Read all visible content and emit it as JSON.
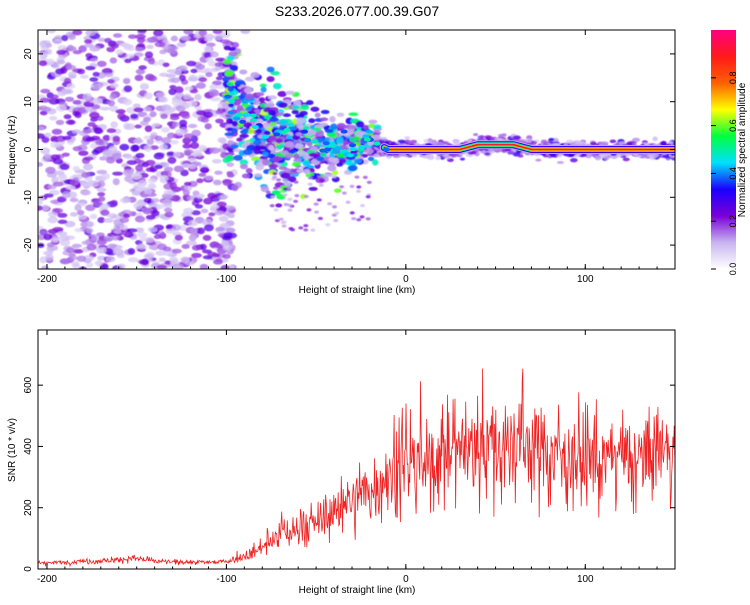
{
  "figure_title": "S233.2026.077.00.39.G07",
  "chart_data": [
    {
      "type": "heatmap",
      "title": "S233.2026.077.00.39.G07",
      "xlabel": "Height of straight line (km)",
      "ylabel": "Frequency (Hz)",
      "xlim": [
        -205,
        150
      ],
      "ylim": [
        -25,
        25
      ],
      "xticks": [
        -200,
        -100,
        0,
        100
      ],
      "yticks": [
        -20,
        -10,
        0,
        10,
        20
      ],
      "xtick_labels": [
        "-200",
        "-100",
        "0",
        "100"
      ],
      "ytick_labels": [
        "-20",
        "-10",
        "0",
        "10",
        "20"
      ],
      "colorbar": {
        "label": "Normalized spectral amplitude",
        "range": [
          0,
          1
        ],
        "ticks": [
          0.0,
          0.2,
          0.4,
          0.6,
          0.8
        ],
        "tick_labels": [
          "0.0",
          "0.2",
          "0.4",
          "0.6",
          "0.8"
        ],
        "colormap": [
          "#ffffff",
          "#c8b4f0",
          "#7a00d8",
          "#1a00ff",
          "#00e0ff",
          "#00ff40",
          "#ffff00",
          "#ff6000",
          "#ff1a1a",
          "#ff0080"
        ]
      },
      "description_series": [
        {
          "name": "dominant frequency ridge",
          "x": [
            -100,
            -90,
            -80,
            -70,
            -60,
            -50,
            -40,
            -30,
            -20,
            -10,
            0,
            10,
            20,
            30,
            40,
            50,
            60,
            70,
            80,
            90,
            100,
            110,
            120,
            130,
            140,
            150
          ],
          "y": [
            10,
            7,
            4,
            2,
            3,
            1,
            0,
            1,
            2,
            0,
            0,
            0,
            0,
            0,
            1,
            1,
            1,
            0,
            0,
            0,
            0,
            0,
            0,
            0,
            0,
            0
          ]
        }
      ]
    },
    {
      "type": "line",
      "title": "",
      "xlabel": "Height of straight line (km)",
      "ylabel": "SNR (10 * v/v)",
      "xlim": [
        -205,
        150
      ],
      "ylim": [
        0,
        780
      ],
      "xticks": [
        -200,
        -100,
        0,
        100
      ],
      "yticks": [
        0,
        200,
        400,
        600
      ],
      "xtick_labels": [
        "-200",
        "-100",
        "0",
        "100"
      ],
      "ytick_labels": [
        "0",
        "200",
        "400",
        "600"
      ],
      "series": [
        {
          "name": "SNR",
          "color": "#ee2222",
          "x": [
            -205,
            -190,
            -175,
            -160,
            -150,
            -140,
            -125,
            -110,
            -100,
            -90,
            -80,
            -70,
            -60,
            -50,
            -40,
            -30,
            -20,
            -15,
            -10,
            0,
            10,
            15,
            20,
            30,
            40,
            50,
            60,
            70,
            80,
            90,
            100,
            110,
            120,
            130,
            140,
            150
          ],
          "y": [
            20,
            22,
            25,
            30,
            35,
            25,
            22,
            22,
            25,
            40,
            70,
            110,
            130,
            150,
            180,
            220,
            260,
            280,
            300,
            320,
            330,
            350,
            380,
            390,
            400,
            400,
            410,
            400,
            380,
            370,
            360,
            360,
            360,
            350,
            370,
            380
          ]
        }
      ]
    }
  ]
}
